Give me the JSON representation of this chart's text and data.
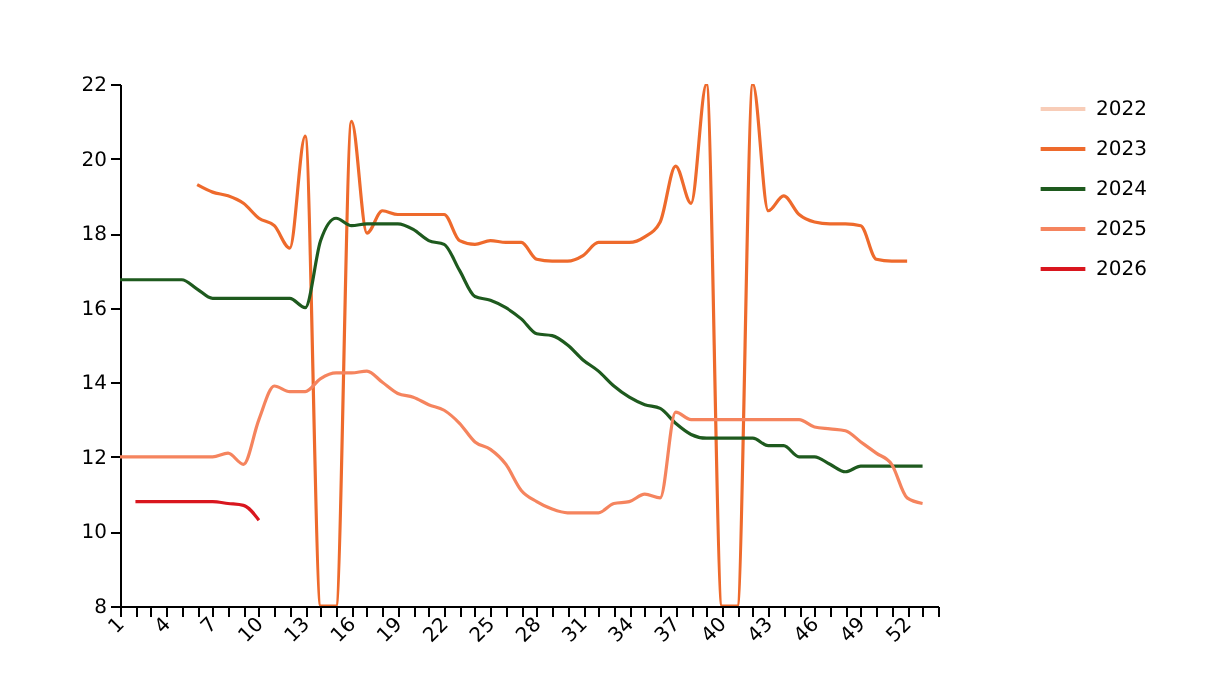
{
  "chart_data": {
    "type": "line",
    "xlim": [
      1,
      54
    ],
    "xticks": [
      1,
      {
        "value": 2,
        "label": null
      },
      {
        "value": 3,
        "label": null
      },
      4,
      {
        "value": 5,
        "label": null
      },
      {
        "value": 6,
        "label": null
      },
      7,
      {
        "value": 8,
        "label": null
      },
      {
        "value": 9,
        "label": null
      },
      10,
      {
        "value": 11,
        "label": null
      },
      {
        "value": 12,
        "label": null
      },
      13,
      {
        "value": 14,
        "label": null
      },
      {
        "value": 15,
        "label": null
      },
      16,
      {
        "value": 17,
        "label": null
      },
      {
        "value": 18,
        "label": null
      },
      19,
      {
        "value": 20,
        "label": null
      },
      {
        "value": 21,
        "label": null
      },
      22,
      {
        "value": 23,
        "label": null
      },
      {
        "value": 24,
        "label": null
      },
      25,
      {
        "value": 26,
        "label": null
      },
      {
        "value": 27,
        "label": null
      },
      28,
      {
        "value": 29,
        "label": null
      },
      {
        "value": 30,
        "label": null
      },
      31,
      {
        "value": 32,
        "label": null
      },
      {
        "value": 33,
        "label": null
      },
      34,
      {
        "value": 35,
        "label": null
      },
      {
        "value": 36,
        "label": null
      },
      37,
      {
        "value": 38,
        "label": null
      },
      {
        "value": 39,
        "label": null
      },
      40,
      {
        "value": 41,
        "label": null
      },
      {
        "value": 42,
        "label": null
      },
      43,
      {
        "value": 44,
        "label": null
      },
      {
        "value": 45,
        "label": null
      },
      46,
      {
        "value": 47,
        "label": null
      },
      {
        "value": 48,
        "label": null
      },
      49,
      {
        "value": 50,
        "label": null
      },
      {
        "value": 51,
        "label": null
      },
      52,
      {
        "value": 53,
        "label": null
      },
      {
        "value": 54,
        "label": null
      }
    ],
    "ylim": [
      8,
      22
    ],
    "yticks": [
      8,
      10,
      12,
      14,
      16,
      18,
      20,
      22
    ],
    "legend": "right",
    "series": [
      {
        "name": "2022",
        "color": "#f8cdb8"
      },
      {
        "name": "2023",
        "color": "#ee6a2c",
        "x": [
          6,
          7,
          8,
          9,
          10,
          11,
          12,
          13,
          14,
          15,
          16,
          17,
          18,
          19,
          20,
          21,
          22,
          23,
          24,
          25,
          26,
          27,
          28,
          29,
          30,
          31,
          32,
          33,
          34,
          35,
          36,
          37,
          38,
          39,
          40,
          41,
          42,
          43,
          44,
          45,
          46,
          47,
          48,
          49,
          50,
          51,
          52
        ],
        "values": [
          19.3,
          19.1,
          19.0,
          18.8,
          18.4,
          18.2,
          17.6,
          20.6,
          8,
          8,
          21.0,
          18.0,
          18.6,
          18.5,
          18.5,
          18.5,
          18.5,
          17.8,
          17.7,
          17.8,
          17.75,
          17.75,
          17.3,
          17.25,
          17.25,
          17.4,
          17.75,
          17.75,
          17.75,
          17.9,
          18.3,
          19.8,
          18.8,
          22,
          8,
          8,
          22,
          18.6,
          19.0,
          18.5,
          18.3,
          18.25,
          18.25,
          18.2,
          17.3,
          17.25,
          17.25
        ]
      },
      {
        "name": "2024",
        "color": "#1e5a1e",
        "x": [
          1,
          2,
          3,
          4,
          5,
          6,
          7,
          8,
          9,
          10,
          11,
          12,
          13,
          14,
          15,
          16,
          17,
          18,
          19,
          20,
          21,
          22,
          23,
          24,
          25,
          26,
          27,
          28,
          29,
          30,
          31,
          32,
          33,
          34,
          35,
          36,
          37,
          38,
          39,
          40,
          41,
          42,
          43,
          44,
          45,
          46,
          47,
          48,
          49,
          50,
          51,
          52,
          53
        ],
        "values": [
          16.75,
          16.75,
          16.75,
          16.75,
          16.75,
          16.5,
          16.25,
          16.25,
          16.25,
          16.25,
          16.25,
          16.25,
          16.0,
          17.8,
          18.4,
          18.2,
          18.25,
          18.25,
          18.25,
          18.1,
          17.8,
          17.7,
          17.0,
          16.3,
          16.2,
          16.0,
          15.7,
          15.3,
          15.25,
          15.0,
          14.6,
          14.3,
          13.9,
          13.6,
          13.4,
          13.3,
          12.9,
          12.6,
          12.5,
          12.5,
          12.5,
          12.5,
          12.3,
          12.3,
          12.0,
          12.0,
          11.8,
          11.6,
          11.75,
          11.75,
          11.75,
          11.75,
          11.75
        ]
      },
      {
        "name": "2025",
        "color": "#f5845e",
        "x": [
          1,
          2,
          3,
          4,
          5,
          6,
          7,
          8,
          9,
          10,
          11,
          12,
          13,
          14,
          15,
          16,
          17,
          18,
          19,
          20,
          21,
          22,
          23,
          24,
          25,
          26,
          27,
          28,
          29,
          30,
          31,
          32,
          33,
          34,
          35,
          36,
          37,
          38,
          39,
          40,
          41,
          42,
          43,
          44,
          45,
          46,
          47,
          48,
          49,
          50,
          51,
          52,
          53
        ],
        "values": [
          12.0,
          12.0,
          12.0,
          12.0,
          12.0,
          12.0,
          12.0,
          12.1,
          11.8,
          13.0,
          13.9,
          13.75,
          13.75,
          14.1,
          14.25,
          14.25,
          14.3,
          14.0,
          13.7,
          13.6,
          13.4,
          13.25,
          12.9,
          12.4,
          12.2,
          11.8,
          11.1,
          10.8,
          10.6,
          10.5,
          10.5,
          10.5,
          10.75,
          10.8,
          11.0,
          10.9,
          13.2,
          13.0,
          13.0,
          13.0,
          13.0,
          13.0,
          13.0,
          13.0,
          13.0,
          12.8,
          12.75,
          12.7,
          12.4,
          12.1,
          11.8,
          10.9,
          10.75
        ]
      },
      {
        "name": "2026",
        "color": "#d9161e",
        "x": [
          2,
          3,
          4,
          5,
          6,
          7,
          8,
          9,
          10
        ],
        "values": [
          10.8,
          10.8,
          10.8,
          10.8,
          10.8,
          10.8,
          10.75,
          10.7,
          10.3
        ]
      }
    ]
  }
}
